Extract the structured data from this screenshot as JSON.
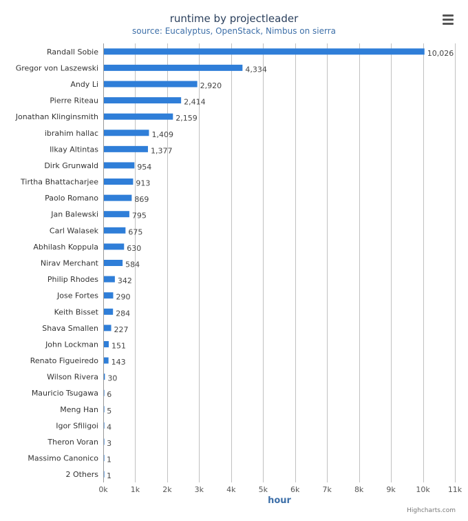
{
  "chart_data": {
    "type": "bar",
    "orientation": "horizontal",
    "title": "runtime by projectleader",
    "subtitle": "source: Eucalyptus, OpenStack, Nimbus on sierra",
    "xlabel": "hour",
    "ylabel": "",
    "xlim": [
      0,
      11000
    ],
    "tick_values": [
      0,
      1000,
      2000,
      3000,
      4000,
      5000,
      6000,
      7000,
      8000,
      9000,
      10000,
      11000
    ],
    "tick_labels": [
      "0k",
      "1k",
      "2k",
      "3k",
      "4k",
      "5k",
      "6k",
      "7k",
      "8k",
      "9k",
      "10k",
      "11k"
    ],
    "categories": [
      "Randall Sobie",
      "Gregor von Laszewski",
      "Andy Li",
      "Pierre Riteau",
      "Jonathan Klinginsmith",
      "ibrahim hallac",
      "Ilkay Altintas",
      "Dirk Grunwald",
      "Tirtha Bhattacharjee",
      "Paolo Romano",
      "Jan Balewski",
      "Carl Walasek",
      "Abhilash Koppula",
      "Nirav Merchant",
      "Philip Rhodes",
      "Jose Fortes",
      "Keith Bisset",
      "Shava Smallen",
      "John Lockman",
      "Renato Figueiredo",
      "Wilson Rivera",
      "Mauricio Tsugawa",
      "Meng Han",
      "Igor Sfiligoi",
      "Theron Voran",
      "Massimo Canonico",
      "2 Others"
    ],
    "values": [
      10026,
      4334,
      2920,
      2414,
      2159,
      1409,
      1377,
      954,
      913,
      869,
      795,
      675,
      630,
      584,
      342,
      290,
      284,
      227,
      151,
      143,
      30,
      6,
      5,
      4,
      3,
      1,
      1
    ],
    "value_labels": [
      "10,026",
      "4,334",
      "2,920",
      "2,414",
      "2,159",
      "1,409",
      "1,377",
      "954",
      "913",
      "869",
      "795",
      "675",
      "630",
      "584",
      "342",
      "290",
      "284",
      "227",
      "151",
      "143",
      "30",
      "6",
      "5",
      "4",
      "3",
      "1",
      "1"
    ],
    "bar_color": "#2f7ed8",
    "grid": true,
    "legend": "none"
  },
  "credits": "Highcharts.com",
  "menu_icon": "menu-icon",
  "colors": {
    "bar": "#2f7ed8",
    "grid": "#c0c0c0",
    "title": "#2a3f5c",
    "subtitle": "#3d6fa8"
  }
}
